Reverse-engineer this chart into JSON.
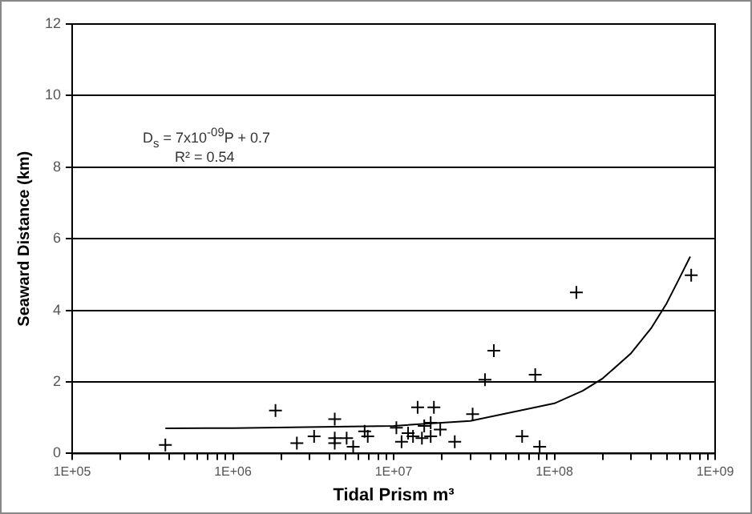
{
  "chart_data": {
    "type": "scatter",
    "xlabel": "Tidal Prism m³",
    "ylabel": "Seaward Distance (km)",
    "annotations": [
      "D$_{s}$ = 7x10$^{-09}$P + 0.7",
      "R² = 0.54"
    ],
    "log": "x",
    "xlim": [
      100000,
      1000000000
    ],
    "xticks": [
      {
        "value": 100000,
        "label": "1E+05"
      },
      {
        "value": 200000,
        "label": null
      },
      {
        "value": 300000,
        "label": null
      },
      {
        "value": 400000,
        "label": null
      },
      {
        "value": 500000,
        "label": null
      },
      {
        "value": 600000,
        "label": null
      },
      {
        "value": 700000,
        "label": null
      },
      {
        "value": 800000,
        "label": null
      },
      {
        "value": 900000,
        "label": null
      },
      {
        "value": 1000000,
        "label": "1E+06"
      },
      {
        "value": 2000000,
        "label": null
      },
      {
        "value": 3000000,
        "label": null
      },
      {
        "value": 4000000,
        "label": null
      },
      {
        "value": 5000000,
        "label": null
      },
      {
        "value": 6000000,
        "label": null
      },
      {
        "value": 7000000,
        "label": null
      },
      {
        "value": 8000000,
        "label": null
      },
      {
        "value": 9000000,
        "label": null
      },
      {
        "value": 10000000,
        "label": "1E+07"
      },
      {
        "value": 20000000,
        "label": null
      },
      {
        "value": 30000000,
        "label": null
      },
      {
        "value": 40000000,
        "label": null
      },
      {
        "value": 50000000,
        "label": null
      },
      {
        "value": 60000000,
        "label": null
      },
      {
        "value": 70000000,
        "label": null
      },
      {
        "value": 80000000,
        "label": null
      },
      {
        "value": 90000000,
        "label": null
      },
      {
        "value": 100000000,
        "label": "1E+08"
      },
      {
        "value": 200000000,
        "label": null
      },
      {
        "value": 300000000,
        "label": null
      },
      {
        "value": 400000000,
        "label": null
      },
      {
        "value": 500000000,
        "label": null
      },
      {
        "value": 600000000,
        "label": null
      },
      {
        "value": 700000000,
        "label": null
      },
      {
        "value": 800000000,
        "label": null
      },
      {
        "value": 900000000,
        "label": null
      },
      {
        "value": 1000000000,
        "label": "1E+09"
      }
    ],
    "ylim": [
      0,
      12
    ],
    "yticks": [
      0,
      2,
      4,
      6,
      8,
      10,
      12
    ],
    "grid": "y",
    "legend": false,
    "marker": "cross",
    "series": [
      {
        "type": "scatter",
        "color": "#000000",
        "x": [
          380000,
          1840000,
          2500000,
          3200000,
          4300000,
          4300000,
          4300000,
          5100000,
          5600000,
          6600000,
          6900000,
          10400000,
          11200000,
          12300000,
          13200000,
          14100000,
          15000000,
          15500000,
          17000000,
          17000000,
          17800000,
          19500000,
          24000000,
          31000000,
          37000000,
          42000000,
          63000000,
          76000000,
          81000000,
          137000000,
          710000000
        ],
        "values": [
          0.24,
          1.2,
          0.29,
          0.48,
          0.96,
          0.29,
          0.43,
          0.43,
          0.19,
          0.62,
          0.48,
          0.72,
          0.33,
          0.57,
          0.48,
          1.29,
          0.43,
          0.77,
          0.86,
          0.48,
          1.29,
          0.67,
          0.33,
          1.1,
          2.06,
          2.87,
          0.48,
          2.2,
          0.19,
          4.5,
          4.98
        ]
      },
      {
        "type": "line",
        "marker": "none",
        "color": "#000000",
        "x": [
          380000,
          1000000,
          10000000,
          30000000,
          100000000,
          150000000,
          200000000,
          300000000,
          400000000,
          500000000,
          600000000,
          700000000
        ],
        "values": [
          0.7,
          0.71,
          0.77,
          0.91,
          1.4,
          1.75,
          2.1,
          2.8,
          3.5,
          4.2,
          4.9,
          5.5
        ]
      }
    ]
  }
}
